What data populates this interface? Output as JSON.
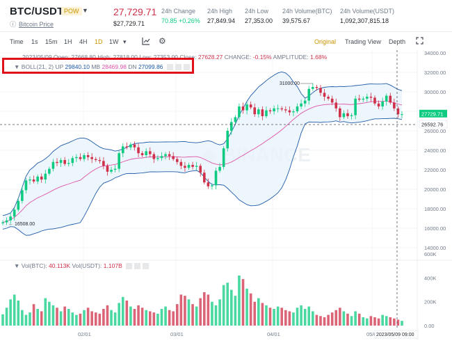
{
  "header": {
    "pair": "BTC/USDT",
    "badge": "POW",
    "sub_label": "Bitcoin Price",
    "last_price": "27,729.71",
    "last_price_usd": "$27,729.71",
    "stats": [
      {
        "label": "24h Change",
        "value": "70.85 +0.26%"
      },
      {
        "label": "24h High",
        "value": "27,849.94"
      },
      {
        "label": "24h Low",
        "value": "27,353.00"
      },
      {
        "label": "24h Volume(BTC)",
        "value": "39,575.67"
      },
      {
        "label": "24h Volume(USDT)",
        "value": "1,092,307,815.18"
      }
    ]
  },
  "toolbar": {
    "intervals": [
      "Time",
      "1s",
      "15m",
      "1H",
      "4H",
      "1D",
      "1W"
    ],
    "active_interval": "1D",
    "views": [
      "Original",
      "Trading View",
      "Depth"
    ],
    "active_view": "Original"
  },
  "legend": {
    "ohlc": "2023/05/09 Open: 27668.80 High: 27818.00 Low: 27353.00 Close:",
    "close_val": "27628.27",
    "change_label": "CHANGE:",
    "change_val": "-0.15%",
    "amp_label": "AMPLITUDE:",
    "amp_val": "1.68%",
    "boll_label": "BOLL(21, 2)",
    "up_label": "UP",
    "up_val": "29840.10",
    "mb_label": "MB",
    "mb_val": "28469.98",
    "dn_label": "DN",
    "dn_val": "27099.86",
    "vol_btc_label": "Vol(BTC):",
    "vol_btc_val": "40.113K",
    "vol_usdt_label": "Vol(USDT):",
    "vol_usdt_val": "1.107B"
  },
  "annotations": {
    "high_marker": "31000.00",
    "low_marker": "16508.00",
    "crosshair_price": "26592.76",
    "crosshair_time": "2023/05/09 09:00",
    "last_price_tag": "27729.71"
  },
  "colors": {
    "up": "#0ecb81",
    "down": "#cf304a",
    "mb": "#e052a8",
    "band": "#1e5aa8",
    "accent": "#c99400"
  },
  "chart_data": {
    "type": "candlestick",
    "price_axis_ticks": [
      "34000.00",
      "32000.00",
      "30000.00",
      "28000.00",
      "26000.00",
      "24000.00",
      "22000.00",
      "20000.00",
      "18000.00",
      "16000.00",
      "14000.00"
    ],
    "volume_axis_ticks": [
      "600K",
      "400K",
      "200K",
      "0.00"
    ],
    "date_ticks": [
      "02/01",
      "03/01",
      "04/01",
      "05/01"
    ],
    "closes": [
      16600,
      16800,
      17200,
      17900,
      18800,
      19900,
      20900,
      21000,
      20800,
      21300,
      21000,
      21600,
      22100,
      22800,
      22700,
      23000,
      22600,
      22700,
      23200,
      23300,
      23100,
      23500,
      23300,
      23100,
      23000,
      22900,
      22400,
      21800,
      22000,
      22100,
      23700,
      24400,
      24300,
      24600,
      24300,
      23700,
      23500,
      23900,
      23600,
      23100,
      23200,
      23400,
      23600,
      23400,
      23100,
      22800,
      22400,
      22200,
      22500,
      22300,
      22400,
      21700,
      20700,
      20300,
      20400,
      21900,
      22300,
      24200,
      26000,
      26900,
      27400,
      28500,
      28100,
      28700,
      28400,
      27700,
      28200,
      27500,
      28100,
      28000,
      28300,
      28300,
      28200,
      28100,
      27900,
      28000,
      28500,
      28800,
      29100,
      30300,
      30500,
      30400,
      29900,
      29500,
      29300,
      28900,
      28300,
      27400,
      27800,
      27500,
      27600,
      29300,
      29200,
      29300,
      29500,
      29400,
      28800,
      28500,
      29000,
      29600,
      28900,
      28300,
      27700,
      27700
    ],
    "volumes": [
      95,
      150,
      220,
      260,
      210,
      130,
      90,
      110,
      180,
      140,
      120,
      230,
      200,
      170,
      150,
      120,
      160,
      140,
      110,
      90,
      100,
      130,
      150,
      120,
      110,
      100,
      140,
      170,
      130,
      110,
      190,
      240,
      210,
      160,
      140,
      170,
      150,
      130,
      120,
      110,
      100,
      140,
      160,
      130,
      120,
      180,
      260,
      250,
      220,
      180,
      160,
      230,
      280,
      260,
      200,
      170,
      220,
      340,
      360,
      300,
      250,
      420,
      390,
      310,
      270,
      200,
      230,
      190,
      170,
      150,
      140,
      160,
      150,
      130,
      120,
      110,
      150,
      170,
      140,
      160,
      120,
      90,
      80,
      70,
      90,
      110,
      130,
      150,
      120,
      100,
      80,
      120,
      100,
      70,
      60,
      80,
      70,
      60,
      90,
      80,
      70,
      60,
      50,
      40
    ]
  }
}
